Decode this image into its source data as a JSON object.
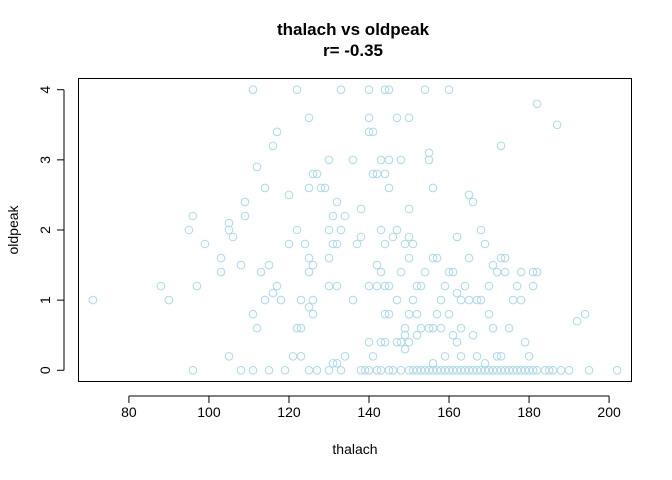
{
  "chart_data": {
    "type": "scatter",
    "title": "thalach vs oldpeak",
    "subtitle": "r= -0.35",
    "xlabel": "thalach",
    "ylabel": "oldpeak",
    "xlim": [
      67.4,
      205.6
    ],
    "ylim": [
      -0.16,
      4.16
    ],
    "xticks": [
      80,
      100,
      120,
      140,
      160,
      180,
      200
    ],
    "yticks": [
      0,
      1,
      2,
      3,
      4
    ],
    "grid": false,
    "legend": "none",
    "marker": "open-circle",
    "color": "#add8e6",
    "points": [
      [
        71,
        1.0
      ],
      [
        88,
        1.2
      ],
      [
        90,
        1.0
      ],
      [
        95,
        2.0
      ],
      [
        96,
        2.2
      ],
      [
        96,
        0.0
      ],
      [
        97,
        1.2
      ],
      [
        99,
        1.8
      ],
      [
        103,
        1.6
      ],
      [
        103,
        1.4
      ],
      [
        105,
        2.1
      ],
      [
        105,
        0.2
      ],
      [
        105,
        2.0
      ],
      [
        106,
        1.9
      ],
      [
        108,
        1.5
      ],
      [
        108,
        0.0
      ],
      [
        109,
        2.2
      ],
      [
        109,
        2.4
      ],
      [
        111,
        4.0
      ],
      [
        111,
        0.8
      ],
      [
        111,
        0.0
      ],
      [
        112,
        2.9
      ],
      [
        112,
        0.6
      ],
      [
        113,
        1.4
      ],
      [
        114,
        2.6
      ],
      [
        114,
        1.0
      ],
      [
        115,
        1.5
      ],
      [
        115,
        0.0
      ],
      [
        116,
        3.2
      ],
      [
        116,
        1.1
      ],
      [
        117,
        3.4
      ],
      [
        117,
        1.2
      ],
      [
        118,
        1.0
      ],
      [
        119,
        0.0
      ],
      [
        120,
        2.5
      ],
      [
        120,
        1.8
      ],
      [
        121,
        0.2
      ],
      [
        122,
        4.0
      ],
      [
        122,
        2.0
      ],
      [
        122,
        0.6
      ],
      [
        123,
        0.6
      ],
      [
        123,
        0.2
      ],
      [
        123,
        1.0
      ],
      [
        124,
        1.8
      ],
      [
        125,
        3.6
      ],
      [
        125,
        2.6
      ],
      [
        125,
        1.6
      ],
      [
        125,
        1.4
      ],
      [
        125,
        0.9
      ],
      [
        125,
        0.0
      ],
      [
        126,
        2.8
      ],
      [
        126,
        1.5
      ],
      [
        126,
        1.0
      ],
      [
        126,
        0.8
      ],
      [
        127,
        2.8
      ],
      [
        127,
        0.0
      ],
      [
        128,
        2.6
      ],
      [
        129,
        2.6
      ],
      [
        130,
        3.0
      ],
      [
        130,
        2.0
      ],
      [
        130,
        1.6
      ],
      [
        130,
        1.2
      ],
      [
        130,
        0.0
      ],
      [
        131,
        2.2
      ],
      [
        131,
        1.8
      ],
      [
        131,
        0.1
      ],
      [
        132,
        2.4
      ],
      [
        132,
        1.8
      ],
      [
        132,
        1.2
      ],
      [
        132,
        0.1
      ],
      [
        133,
        4.0
      ],
      [
        133,
        2.0
      ],
      [
        133,
        0.0
      ],
      [
        134,
        2.2
      ],
      [
        134,
        0.2
      ],
      [
        136,
        3.0
      ],
      [
        136,
        1.0
      ],
      [
        137,
        1.8
      ],
      [
        138,
        2.3
      ],
      [
        138,
        1.9
      ],
      [
        138,
        0.0
      ],
      [
        139,
        0.0
      ],
      [
        140,
        4.0
      ],
      [
        140,
        3.6
      ],
      [
        140,
        3.4
      ],
      [
        140,
        1.2
      ],
      [
        140,
        0.4
      ],
      [
        140,
        0.0
      ],
      [
        141,
        3.4
      ],
      [
        141,
        2.8
      ],
      [
        141,
        0.2
      ],
      [
        142,
        2.8
      ],
      [
        142,
        1.2
      ],
      [
        142,
        1.5
      ],
      [
        142,
        0.0
      ],
      [
        143,
        3.0
      ],
      [
        143,
        2.0
      ],
      [
        143,
        1.4
      ],
      [
        143,
        0.4
      ],
      [
        143,
        0.0
      ],
      [
        144,
        4.0
      ],
      [
        144,
        2.8
      ],
      [
        144,
        1.8
      ],
      [
        144,
        1.2
      ],
      [
        144,
        0.8
      ],
      [
        144,
        0.4
      ],
      [
        145,
        4.0
      ],
      [
        145,
        3.0
      ],
      [
        145,
        2.6
      ],
      [
        145,
        1.2
      ],
      [
        145,
        0.8
      ],
      [
        145,
        0.0
      ],
      [
        146,
        1.9
      ],
      [
        146,
        0.0
      ],
      [
        147,
        3.6
      ],
      [
        147,
        2.0
      ],
      [
        147,
        1.0
      ],
      [
        147,
        0.4
      ],
      [
        148,
        3.0
      ],
      [
        148,
        1.4
      ],
      [
        148,
        0.4
      ],
      [
        148,
        0.0
      ],
      [
        149,
        1.8
      ],
      [
        149,
        0.6
      ],
      [
        149,
        0.3
      ],
      [
        149,
        0.5
      ],
      [
        150,
        3.6
      ],
      [
        150,
        2.3
      ],
      [
        150,
        1.9
      ],
      [
        150,
        1.6
      ],
      [
        150,
        0.8
      ],
      [
        150,
        0.4
      ],
      [
        150,
        0.0
      ],
      [
        151,
        1.8
      ],
      [
        151,
        1.0
      ],
      [
        151,
        0.0
      ],
      [
        152,
        1.2
      ],
      [
        152,
        0.5
      ],
      [
        152,
        0.0
      ],
      [
        152,
        0.8
      ],
      [
        153,
        1.2
      ],
      [
        153,
        0.6
      ],
      [
        153,
        0.0
      ],
      [
        154,
        4.0
      ],
      [
        154,
        1.4
      ],
      [
        154,
        0.0
      ],
      [
        155,
        3.1
      ],
      [
        155,
        3.0
      ],
      [
        155,
        0.6
      ],
      [
        155,
        0.0
      ],
      [
        156,
        2.6
      ],
      [
        156,
        1.6
      ],
      [
        156,
        0.1
      ],
      [
        156,
        0.6
      ],
      [
        156,
        0.0
      ],
      [
        157,
        1.6
      ],
      [
        157,
        0.8
      ],
      [
        157,
        0.0
      ],
      [
        158,
        1.0
      ],
      [
        158,
        0.6
      ],
      [
        158,
        0.0
      ],
      [
        159,
        1.2
      ],
      [
        159,
        0.2
      ],
      [
        159,
        0.0
      ],
      [
        160,
        4.0
      ],
      [
        160,
        1.4
      ],
      [
        160,
        0.8
      ],
      [
        160,
        0.0
      ],
      [
        161,
        1.4
      ],
      [
        161,
        0.5
      ],
      [
        161,
        0.0
      ],
      [
        162,
        1.9
      ],
      [
        162,
        1.9
      ],
      [
        162,
        1.1
      ],
      [
        162,
        0.4
      ],
      [
        162,
        0.0
      ],
      [
        163,
        1.0
      ],
      [
        163,
        0.6
      ],
      [
        163,
        0.2
      ],
      [
        163,
        0.0
      ],
      [
        164,
        1.2
      ],
      [
        164,
        0.0
      ],
      [
        165,
        2.5
      ],
      [
        165,
        1.6
      ],
      [
        165,
        1.0
      ],
      [
        165,
        0.0
      ],
      [
        166,
        2.4
      ],
      [
        166,
        0.5
      ],
      [
        166,
        0.0
      ],
      [
        167,
        1.0
      ],
      [
        167,
        0.2
      ],
      [
        167,
        0.0
      ],
      [
        168,
        2.0
      ],
      [
        168,
        1.0
      ],
      [
        168,
        0.0
      ],
      [
        169,
        1.8
      ],
      [
        169,
        0.1
      ],
      [
        169,
        0.0
      ],
      [
        170,
        1.2
      ],
      [
        170,
        0.8
      ],
      [
        170,
        0.0
      ],
      [
        171,
        1.5
      ],
      [
        171,
        0.6
      ],
      [
        171,
        0.0
      ],
      [
        172,
        1.4
      ],
      [
        172,
        0.2
      ],
      [
        172,
        0.0
      ],
      [
        173,
        3.2
      ],
      [
        173,
        1.6
      ],
      [
        173,
        0.2
      ],
      [
        173,
        0.0
      ],
      [
        174,
        1.6
      ],
      [
        174,
        1.4
      ],
      [
        174,
        0.0
      ],
      [
        175,
        0.6
      ],
      [
        175,
        0.0
      ],
      [
        176,
        1.0
      ],
      [
        176,
        0.0
      ],
      [
        177,
        1.2
      ],
      [
        177,
        0.0
      ],
      [
        178,
        1.4
      ],
      [
        178,
        1.0
      ],
      [
        178,
        0.0
      ],
      [
        179,
        0.4
      ],
      [
        179,
        0.0
      ],
      [
        180,
        0.2
      ],
      [
        180,
        0.0
      ],
      [
        181,
        1.4
      ],
      [
        181,
        1.2
      ],
      [
        181,
        0.0
      ],
      [
        182,
        3.8
      ],
      [
        182,
        1.4
      ],
      [
        182,
        0.0
      ],
      [
        184,
        0.0
      ],
      [
        185,
        0.0
      ],
      [
        186,
        0.0
      ],
      [
        187,
        3.5
      ],
      [
        188,
        0.0
      ],
      [
        190,
        0.0
      ],
      [
        192,
        0.7
      ],
      [
        194,
        0.8
      ],
      [
        195,
        0.0
      ],
      [
        202,
        0.0
      ]
    ]
  }
}
